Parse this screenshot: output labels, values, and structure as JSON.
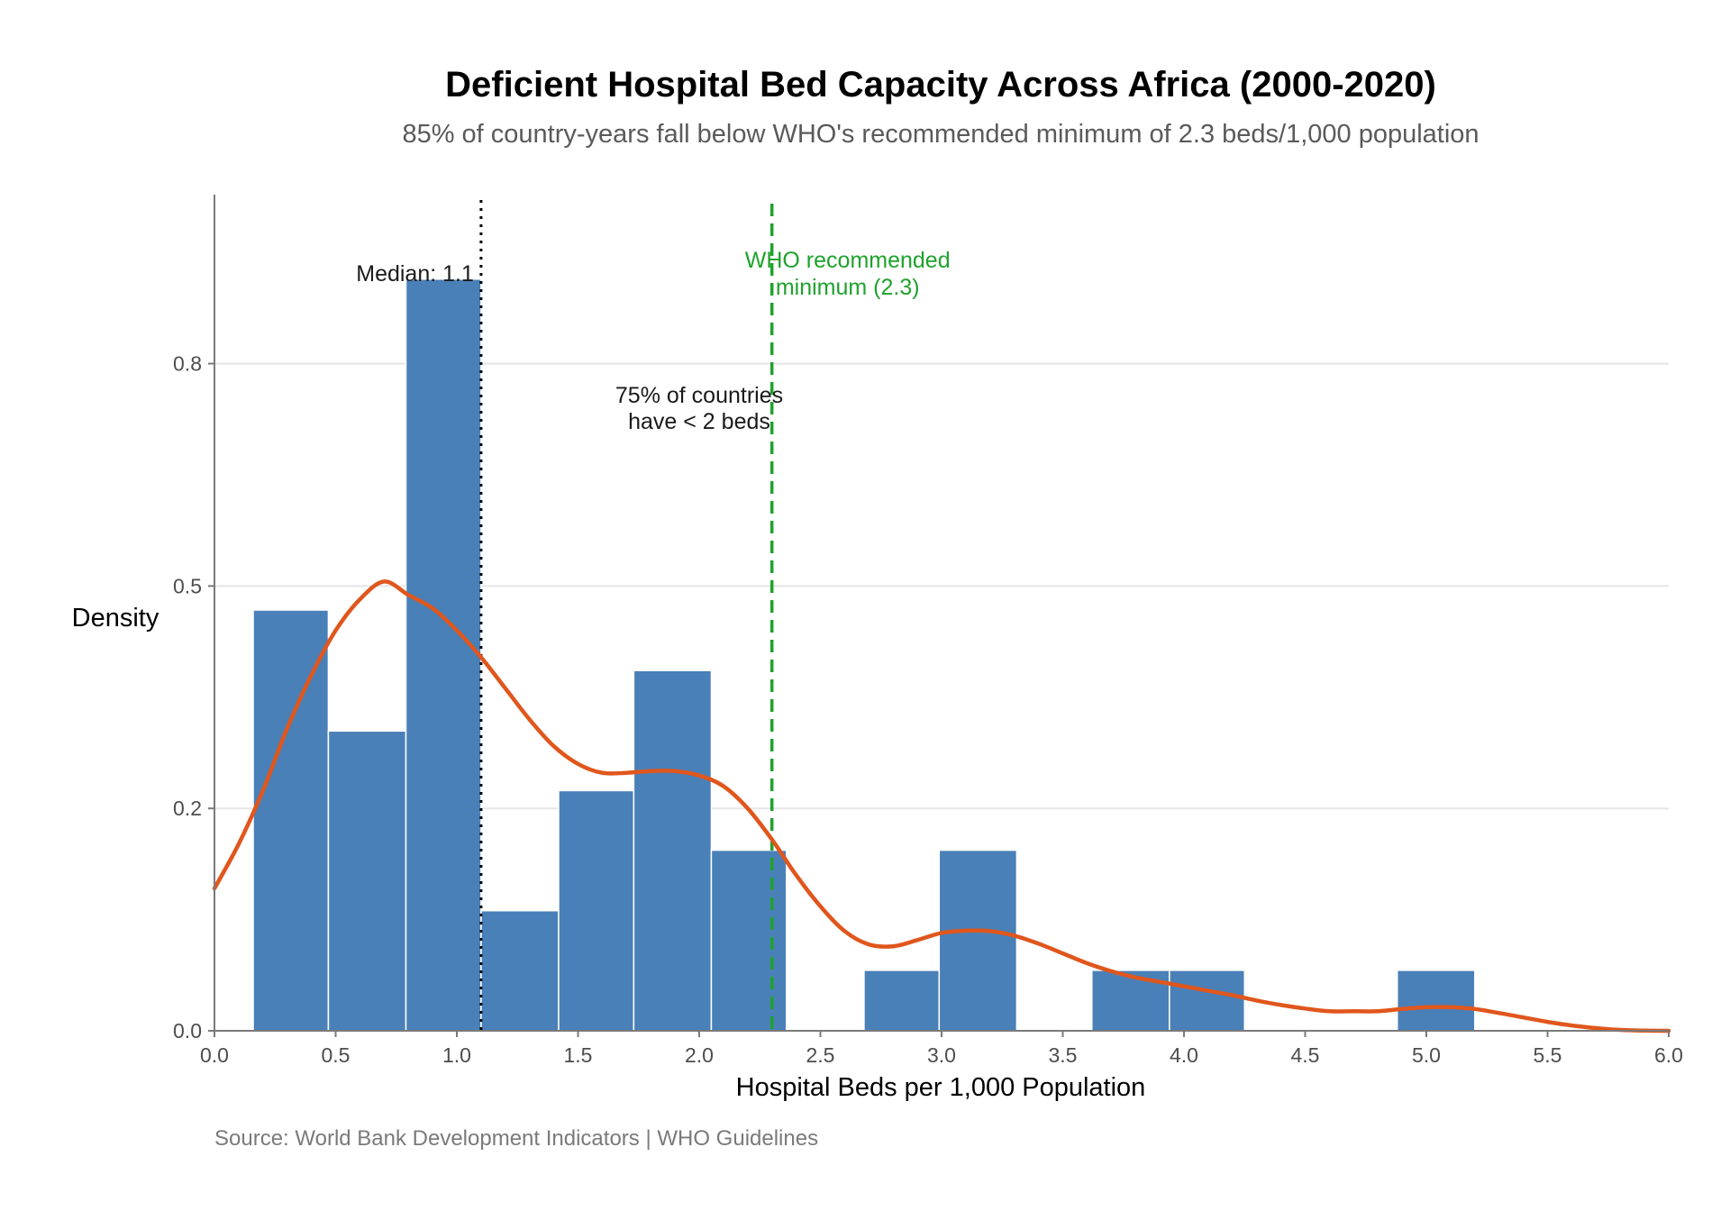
{
  "colors": {
    "bar_fill": "#4a80b8",
    "density_line": "#e0561c",
    "who_line": "#1fa22c",
    "median_line": "#000000",
    "grid": "#e5e5e5"
  },
  "chart_data": {
    "type": "bar",
    "title": "Deficient Hospital Bed Capacity Across Africa (2000-2020)",
    "subtitle": "85% of country-years fall below WHO's recommended minimum of 2.3 beds/1,000 population",
    "xlabel": "Hospital Beds per 1,000 Population",
    "ylabel": "Density",
    "caption": "Source: World Bank Development Indicators | WHO Guidelines",
    "xlim": [
      0,
      6
    ],
    "ylim": [
      0,
      0.94
    ],
    "x_ticks": [
      0.0,
      0.5,
      1.0,
      1.5,
      2.0,
      2.5,
      3.0,
      3.5,
      4.0,
      4.5,
      5.0,
      5.5,
      6.0
    ],
    "x_tick_labels": [
      "0.0",
      "0.5",
      "1.0",
      "1.5",
      "2.0",
      "2.5",
      "3.0",
      "3.5",
      "4.0",
      "4.5",
      "5.0",
      "5.5",
      "6.0"
    ],
    "y_ticks": [
      0.0,
      0.25,
      0.5,
      0.75
    ],
    "y_tick_labels": [
      "0.0",
      "0.2",
      "0.5",
      "0.8"
    ],
    "grid": true,
    "histogram": {
      "bin_edges": [
        0.16,
        0.47,
        0.79,
        1.1,
        1.42,
        1.73,
        2.05,
        2.36,
        2.68,
        2.99,
        3.31,
        3.62,
        3.94,
        4.25,
        4.57,
        4.88,
        5.2
      ],
      "densities": [
        0.473,
        0.337,
        0.845,
        0.135,
        0.27,
        0.405,
        0.203,
        0,
        0.068,
        0.203,
        0,
        0.068,
        0.068,
        0,
        0,
        0.068
      ]
    },
    "density_curve": {
      "x": [
        0.0,
        0.1,
        0.2,
        0.3,
        0.4,
        0.5,
        0.6,
        0.7,
        0.8,
        0.9,
        1.0,
        1.1,
        1.2,
        1.3,
        1.4,
        1.5,
        1.6,
        1.7,
        1.8,
        1.9,
        2.0,
        2.1,
        2.2,
        2.3,
        2.4,
        2.5,
        2.6,
        2.7,
        2.8,
        2.9,
        3.0,
        3.1,
        3.2,
        3.3,
        3.4,
        3.5,
        3.6,
        3.7,
        3.8,
        3.9,
        4.0,
        4.1,
        4.2,
        4.3,
        4.4,
        4.5,
        4.6,
        4.7,
        4.8,
        4.9,
        5.0,
        5.1,
        5.2,
        5.3,
        5.4,
        5.5,
        5.6,
        5.7,
        5.8,
        5.9,
        6.0
      ],
      "y": [
        0.16,
        0.21,
        0.27,
        0.34,
        0.4,
        0.45,
        0.485,
        0.505,
        0.49,
        0.475,
        0.45,
        0.42,
        0.385,
        0.35,
        0.32,
        0.3,
        0.29,
        0.29,
        0.292,
        0.292,
        0.287,
        0.275,
        0.25,
        0.215,
        0.175,
        0.14,
        0.112,
        0.097,
        0.095,
        0.102,
        0.11,
        0.1125,
        0.112,
        0.107,
        0.098,
        0.087,
        0.076,
        0.067,
        0.06,
        0.055,
        0.05,
        0.045,
        0.04,
        0.034,
        0.029,
        0.025,
        0.022,
        0.022,
        0.022,
        0.0245,
        0.0265,
        0.0265,
        0.0245,
        0.02,
        0.015,
        0.01,
        0.006,
        0.003,
        0.001,
        0.0002,
        0.0
      ]
    },
    "reference_lines": [
      {
        "name": "median",
        "x": 1.1,
        "label": "Median: 1.1"
      },
      {
        "name": "who",
        "x": 2.3,
        "label_line1": "WHO recommended",
        "label_line2": "minimum (2.3)"
      }
    ],
    "annotation": {
      "x": 2.0,
      "line1": "75% of countries",
      "line2": "have < 2 beds"
    }
  }
}
